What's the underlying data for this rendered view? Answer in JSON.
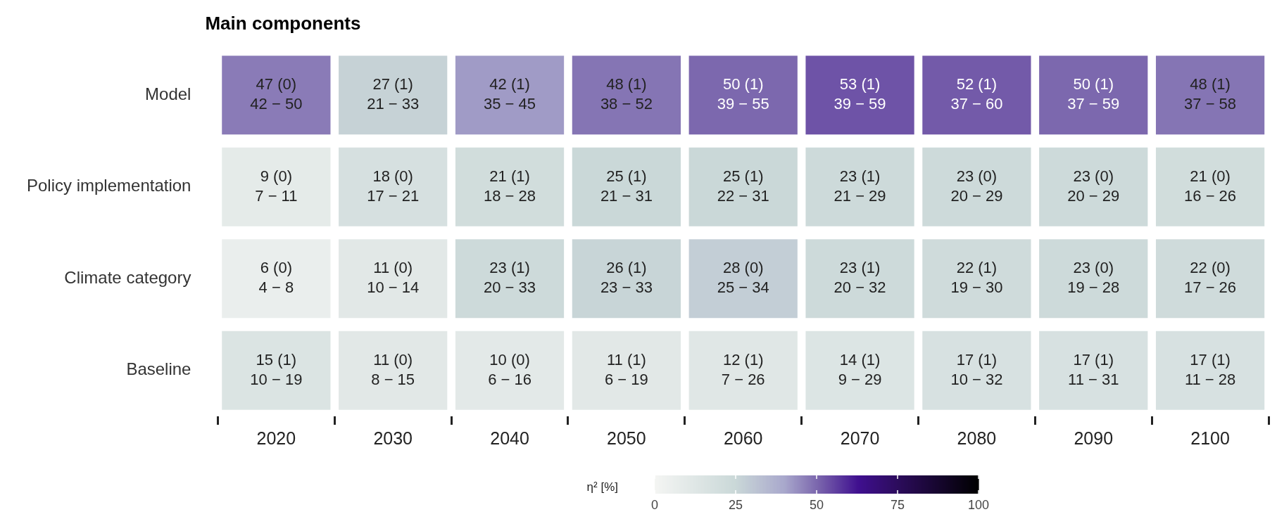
{
  "chart_data": {
    "type": "heatmap",
    "title": "Main components",
    "clabel": "η² [%]",
    "categories": [
      "2020",
      "2030",
      "2040",
      "2050",
      "2060",
      "2070",
      "2080",
      "2090",
      "2100"
    ],
    "y_categories": [
      "Model",
      "Policy implementation",
      "Climate category",
      "Baseline"
    ],
    "cells": [
      [
        47,
        27,
        42,
        48,
        50,
        53,
        52,
        50,
        48
      ],
      [
        9,
        18,
        21,
        25,
        25,
        23,
        23,
        23,
        21
      ],
      [
        6,
        11,
        23,
        26,
        28,
        23,
        22,
        23,
        22
      ],
      [
        15,
        11,
        10,
        11,
        12,
        14,
        17,
        17,
        17
      ]
    ],
    "cell_labels": [
      [
        "47 (0)\n42 − 50",
        "27 (1)\n21 − 33",
        "42 (1)\n35 − 45",
        "48 (1)\n38 − 52",
        "50 (1)\n39 − 55",
        "53 (1)\n39 − 59",
        "52 (1)\n37 − 60",
        "50 (1)\n37 − 59",
        "48 (1)\n37 − 58"
      ],
      [
        "9 (0)\n7 − 11",
        "18 (0)\n17 − 21",
        "21 (1)\n18 − 28",
        "25 (1)\n21 − 31",
        "25 (1)\n22 − 31",
        "23 (1)\n21 − 29",
        "23 (0)\n20 − 29",
        "23 (0)\n20 − 29",
        "21 (0)\n16 − 26"
      ],
      [
        "6 (0)\n4 − 8",
        "11 (0)\n10 − 14",
        "23 (1)\n20 − 33",
        "26 (1)\n23 − 33",
        "28 (0)\n25 − 34",
        "23 (1)\n20 − 32",
        "22 (1)\n19 − 30",
        "23 (0)\n19 − 28",
        "22 (0)\n17 − 26"
      ],
      [
        "15 (1)\n10 − 19",
        "11 (0)\n8 − 15",
        "10 (0)\n6 − 16",
        "11 (1)\n6 − 19",
        "12 (1)\n7 − 26",
        "14 (1)\n9 − 29",
        "17 (1)\n10 − 32",
        "17 (1)\n11 − 31",
        "17 (1)\n11 − 28"
      ]
    ],
    "clim": [
      0,
      100
    ],
    "cticks": [
      0,
      25,
      50,
      75,
      100
    ]
  }
}
